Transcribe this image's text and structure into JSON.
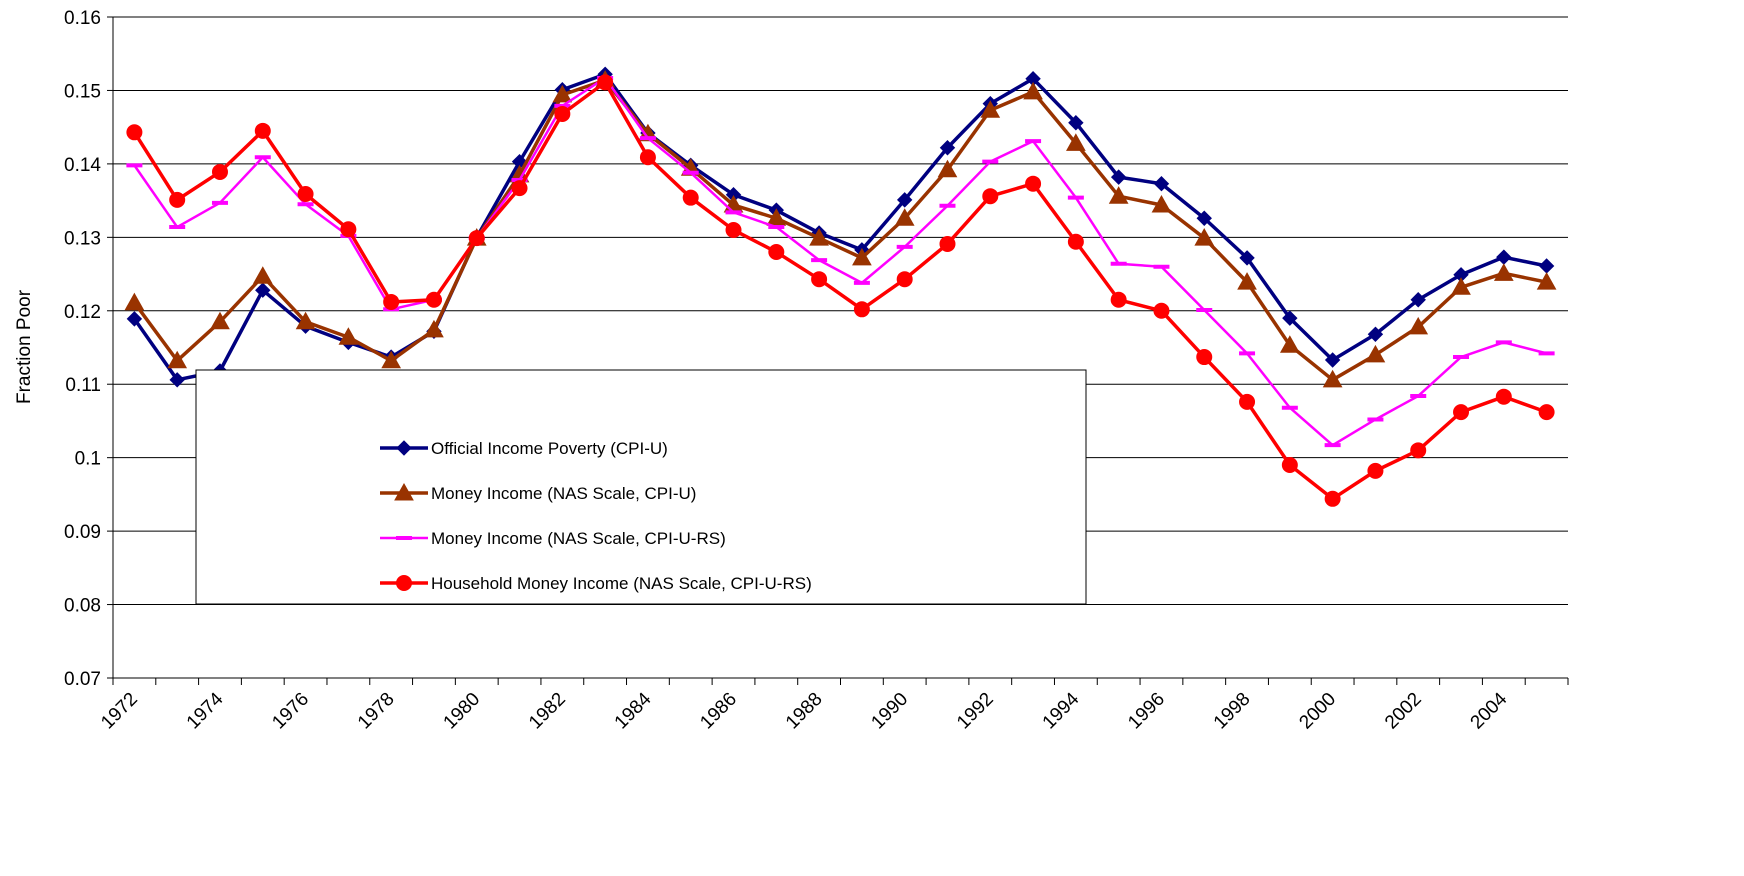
{
  "chart_data": {
    "type": "line",
    "y_label": "Fraction Poor",
    "categories": [
      "1972",
      null,
      "1974",
      null,
      "1976",
      null,
      "1978",
      null,
      "1980",
      null,
      "1982",
      null,
      "1984",
      null,
      "1986",
      null,
      "1988",
      null,
      "1990",
      null,
      "1992",
      null,
      "1994",
      null,
      "1996",
      null,
      "1998",
      null,
      "2000",
      null,
      "2002",
      null,
      "2004",
      null
    ],
    "ylim": [
      0.07,
      0.16
    ],
    "yticks": [
      0.07,
      0.08,
      0.09,
      0.1,
      0.11,
      0.12,
      0.13,
      0.14,
      0.15,
      0.16
    ],
    "grid": true,
    "legend_position": "lower-left",
    "series": [
      {
        "name": "Official Income Poverty (CPI-U)",
        "color": "#000080",
        "marker": "diamond",
        "values": [
          0.1189,
          0.1106,
          0.1118,
          0.1228,
          0.1179,
          0.1157,
          0.1137,
          0.1172,
          0.13,
          0.1403,
          0.1501,
          0.1522,
          0.1442,
          0.1398,
          0.1358,
          0.1337,
          0.1306,
          0.1283,
          0.1351,
          0.1422,
          0.1482,
          0.1516,
          0.1456,
          0.1382,
          0.1373,
          0.1326,
          0.1272,
          0.119,
          0.1133,
          0.1168,
          0.1215,
          0.1249,
          0.1273,
          0.1261
        ]
      },
      {
        "name": "Money Income (NAS Scale, CPI-U)",
        "color": "#993300",
        "marker": "triangle",
        "values": [
          0.1211,
          0.1132,
          0.1185,
          0.1247,
          0.1185,
          0.1164,
          0.1132,
          0.1174,
          0.1299,
          0.1385,
          0.1494,
          0.1514,
          0.1441,
          0.1394,
          0.1344,
          0.1326,
          0.1299,
          0.1272,
          0.1326,
          0.1392,
          0.1473,
          0.1498,
          0.1428,
          0.1356,
          0.1344,
          0.1299,
          0.1239,
          0.1153,
          0.1106,
          0.114,
          0.1178,
          0.1232,
          0.1251,
          0.1239
        ]
      },
      {
        "name": "Money Income (NAS Scale, CPI-U-RS)",
        "color": "#ff00ff",
        "marker": "dash",
        "values": [
          0.1398,
          0.1314,
          0.1347,
          0.1409,
          0.1345,
          0.1302,
          0.1202,
          0.1215,
          0.1299,
          0.1378,
          0.1479,
          0.1517,
          0.1435,
          0.1388,
          0.1334,
          0.1314,
          0.1269,
          0.1238,
          0.1287,
          0.1343,
          0.1403,
          0.1431,
          0.1354,
          0.1264,
          0.126,
          0.1201,
          0.1142,
          0.1068,
          0.1017,
          0.1052,
          0.1084,
          0.1137,
          0.1157,
          0.1142
        ]
      },
      {
        "name": "Household Money Income (NAS Scale, CPI-U-RS)",
        "color": "#ff0000",
        "marker": "circle",
        "values": [
          0.1443,
          0.1351,
          0.1389,
          0.1445,
          0.1359,
          0.1311,
          0.1212,
          0.1215,
          0.1299,
          0.1367,
          0.1468,
          0.1511,
          0.1409,
          0.1354,
          0.131,
          0.128,
          0.1243,
          0.1202,
          0.1243,
          0.1291,
          0.1356,
          0.1373,
          0.1294,
          0.1215,
          0.12,
          0.1137,
          0.1076,
          0.099,
          0.0944,
          0.0982,
          0.101,
          0.1062,
          0.1083,
          0.1062
        ]
      }
    ]
  }
}
